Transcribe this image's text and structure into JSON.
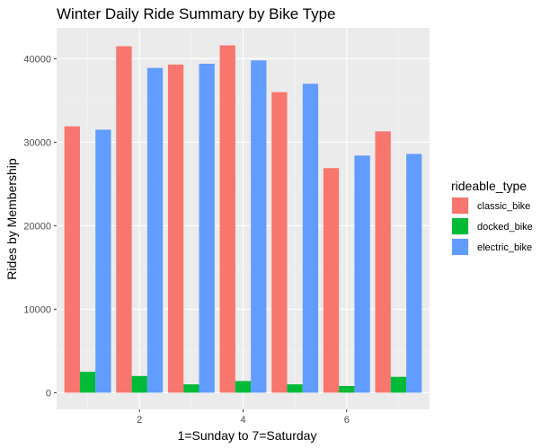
{
  "chart_data": {
    "type": "bar",
    "title": "Winter Daily Ride Summary by Bike Type",
    "xlabel": "1=Sunday to 7=Saturday",
    "ylabel": "Rides by Membership",
    "x": [
      1,
      2,
      3,
      4,
      5,
      6,
      7
    ],
    "x_ticks": [
      2,
      4,
      6
    ],
    "xlim": [
      0.4,
      7.6
    ],
    "y_ticks": [
      0,
      10000,
      20000,
      30000,
      40000
    ],
    "y_tick_labels": [
      "0",
      "10000",
      "20000",
      "30000",
      "40000"
    ],
    "ylim": [
      -2000,
      43700
    ],
    "grid": true,
    "legend_position": "right",
    "legend_title": "rideable_type",
    "series": [
      {
        "name": "classic_bike",
        "color": "#F8766D",
        "values": [
          31900,
          41500,
          39300,
          41600,
          36000,
          26900,
          31300
        ]
      },
      {
        "name": "docked_bike",
        "color": "#00BA38",
        "values": [
          2500,
          2000,
          1000,
          1400,
          1000,
          800,
          1900
        ]
      },
      {
        "name": "electric_bike",
        "color": "#619CFF",
        "values": [
          31500,
          38900,
          39400,
          39800,
          37000,
          28400,
          28600
        ]
      }
    ]
  }
}
